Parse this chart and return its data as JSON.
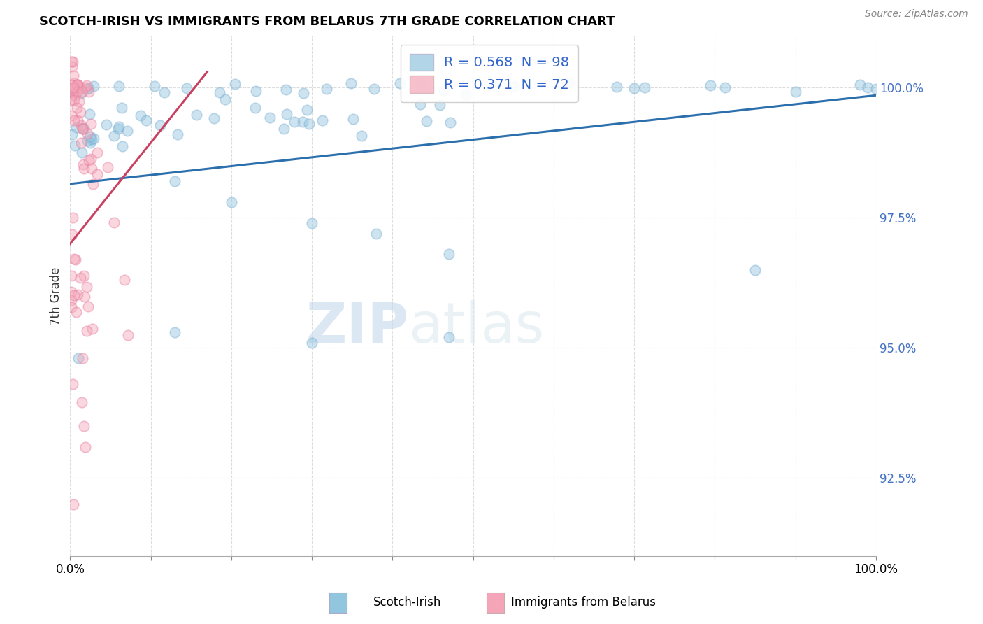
{
  "title": "SCOTCH-IRISH VS IMMIGRANTS FROM BELARUS 7TH GRADE CORRELATION CHART",
  "source": "Source: ZipAtlas.com",
  "ylabel": "7th Grade",
  "watermark_zip": "ZIP",
  "watermark_atlas": "atlas",
  "legend_blue_label": "R = 0.568  N = 98",
  "legend_pink_label": "R = 0.371  N = 72",
  "legend_text_color": "#3366cc",
  "ytick_color": "#4472c4",
  "yticks": [
    92.5,
    95.0,
    97.5,
    100.0
  ],
  "xlim": [
    0.0,
    100.0
  ],
  "ylim": [
    91.0,
    101.0
  ],
  "scatter_size": 110,
  "scatter_alpha": 0.45,
  "blue_color": "#92c5de",
  "blue_edge_color": "#7bafd4",
  "pink_color": "#f4a6b8",
  "pink_edge_color": "#e87fa0",
  "blue_line_color": "#2c6fad",
  "pink_line_color": "#c94060",
  "grid_color": "#dddddd",
  "background_color": "#ffffff",
  "blue_line_x0": 0.0,
  "blue_line_y0": 98.15,
  "blue_line_x1": 100.0,
  "blue_line_y1": 99.85,
  "pink_line_x0": 0.0,
  "pink_line_y0": 97.0,
  "pink_line_x1": 17.0,
  "pink_line_y1": 100.3
}
